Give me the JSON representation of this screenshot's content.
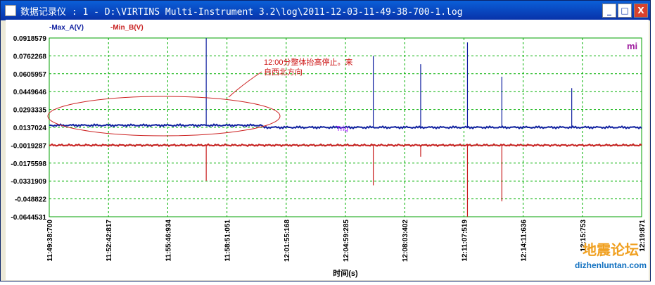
{
  "window": {
    "title": "数据记录仪 : 1 - D:\\VIRTINS Multi-Instrument 3.2\\log\\2011-12-03-11-49-38-700-1.log",
    "buttons": {
      "minimize": "_",
      "maximize": "□",
      "close": "X"
    }
  },
  "chart_data": {
    "type": "line",
    "legend": [
      {
        "label": "-Max_A(V)",
        "color": "#1020a0"
      },
      {
        "label": "-Min_B(V)",
        "color": "#c82020"
      }
    ],
    "corner_label": "mi",
    "marker_label": "Trig",
    "annotation": "12:00分整体抬高停止。来自西北方向",
    "xlabel": "时间(s)",
    "y_ticks": [
      "0.0918579",
      "0.0762268",
      "0.0605957",
      "0.0449646",
      "0.0293335",
      "0.0137024",
      "-0.0019287",
      "-0.0175598",
      "-0.0331909",
      "-0.048822",
      "-0.0644531"
    ],
    "x_ticks": [
      "11:49:38:700",
      "11:52:42:817",
      "11:55:46:934",
      "11:58:51:051",
      "12:01:55:168",
      "12:04:59:285",
      "12:08:03:402",
      "12:11:07:519",
      "12:14:11:636",
      "12:15:753",
      "12:19:871"
    ],
    "ylim": [
      -0.0644531,
      0.0918579
    ],
    "series": [
      {
        "name": "Max_A(V)",
        "baseline_before_1200": 0.0155,
        "baseline_after_1200": 0.0137,
        "spikes": [
          0.0918,
          0.0762,
          0.069,
          0.088,
          0.058,
          0.048
        ]
      },
      {
        "name": "Min_B(V)",
        "baseline": -0.0019,
        "spikes": [
          -0.033,
          -0.037,
          -0.012,
          -0.0644,
          -0.051
        ]
      }
    ]
  },
  "watermark": {
    "text": "地震论坛",
    "url": "dizhenluntan.com"
  }
}
